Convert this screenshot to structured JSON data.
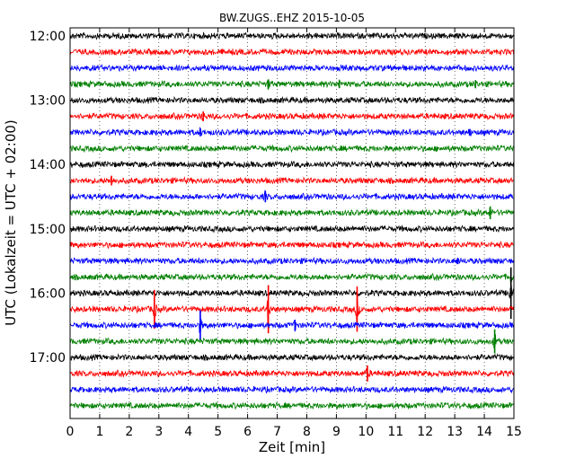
{
  "chart_data": {
    "type": "line",
    "title": "BW.ZUGS..EHZ 2015-10-05",
    "xlabel": "Zeit  [min]",
    "ylabel": "UTC (Lokalzeit = UTC + 02:00)",
    "xlim": [
      0,
      15
    ],
    "x_ticks": [
      "0",
      "1",
      "2",
      "3",
      "4",
      "5",
      "6",
      "7",
      "8",
      "9",
      "10",
      "11",
      "12",
      "13",
      "14",
      "15"
    ],
    "y_ticks": [
      {
        "label": "12:00",
        "row": 0
      },
      {
        "label": "13:00",
        "row": 4
      },
      {
        "label": "14:00",
        "row": 8
      },
      {
        "label": "15:00",
        "row": 12
      },
      {
        "label": "16:00",
        "row": 16
      },
      {
        "label": "17:00",
        "row": 20
      }
    ],
    "grid": "vertical dotted",
    "trace_colors": [
      "#000000",
      "#ff0000",
      "#0000ff",
      "#007f00"
    ],
    "rows": [
      {
        "start": "12:00",
        "color": "#000000",
        "events": []
      },
      {
        "start": "12:15",
        "color": "#ff0000",
        "events": []
      },
      {
        "start": "12:30",
        "color": "#0000ff",
        "events": []
      },
      {
        "start": "12:45",
        "color": "#007f00",
        "events": [
          {
            "t": 6.7,
            "amp": 0.3
          },
          {
            "t": 9.1,
            "amp": 0.25
          },
          {
            "t": 13.7,
            "amp": 0.25
          }
        ]
      },
      {
        "start": "13:00",
        "color": "#000000",
        "events": []
      },
      {
        "start": "13:15",
        "color": "#ff0000",
        "events": [
          {
            "t": 4.5,
            "amp": 0.3
          }
        ]
      },
      {
        "start": "13:30",
        "color": "#0000ff",
        "events": [
          {
            "t": 4.4,
            "amp": 0.25
          },
          {
            "t": 13.5,
            "amp": 0.2
          }
        ]
      },
      {
        "start": "13:45",
        "color": "#007f00",
        "events": []
      },
      {
        "start": "14:00",
        "color": "#000000",
        "events": []
      },
      {
        "start": "14:15",
        "color": "#ff0000",
        "events": [
          {
            "t": 1.4,
            "amp": 0.3
          }
        ]
      },
      {
        "start": "14:30",
        "color": "#0000ff",
        "events": [
          {
            "t": 6.6,
            "amp": 0.35
          }
        ]
      },
      {
        "start": "14:45",
        "color": "#007f00",
        "events": [
          {
            "t": 14.2,
            "amp": 0.4
          }
        ]
      },
      {
        "start": "15:00",
        "color": "#000000",
        "events": []
      },
      {
        "start": "15:15",
        "color": "#ff0000",
        "events": []
      },
      {
        "start": "15:30",
        "color": "#0000ff",
        "events": [
          {
            "t": 13.1,
            "amp": 0.2
          }
        ]
      },
      {
        "start": "15:45",
        "color": "#007f00",
        "events": [
          {
            "t": 14.9,
            "amp": 0.5
          }
        ]
      },
      {
        "start": "16:00",
        "color": "#000000",
        "events": [
          {
            "t": 14.9,
            "amp": 1.6
          }
        ]
      },
      {
        "start": "16:15",
        "color": "#ff0000",
        "events": [
          {
            "t": 2.85,
            "amp": 1.2
          },
          {
            "t": 6.7,
            "amp": 1.5
          },
          {
            "t": 9.7,
            "amp": 1.4
          }
        ]
      },
      {
        "start": "16:30",
        "color": "#0000ff",
        "events": [
          {
            "t": 4.4,
            "amp": 0.9
          },
          {
            "t": 7.6,
            "amp": 0.35
          }
        ]
      },
      {
        "start": "16:45",
        "color": "#007f00",
        "events": [
          {
            "t": 14.35,
            "amp": 0.75
          }
        ]
      },
      {
        "start": "17:00",
        "color": "#000000",
        "events": []
      },
      {
        "start": "17:15",
        "color": "#ff0000",
        "events": [
          {
            "t": 10.05,
            "amp": 0.5
          }
        ]
      },
      {
        "start": "17:30",
        "color": "#0000ff",
        "events": []
      },
      {
        "start": "17:45",
        "color": "#007f00",
        "events": []
      }
    ]
  }
}
